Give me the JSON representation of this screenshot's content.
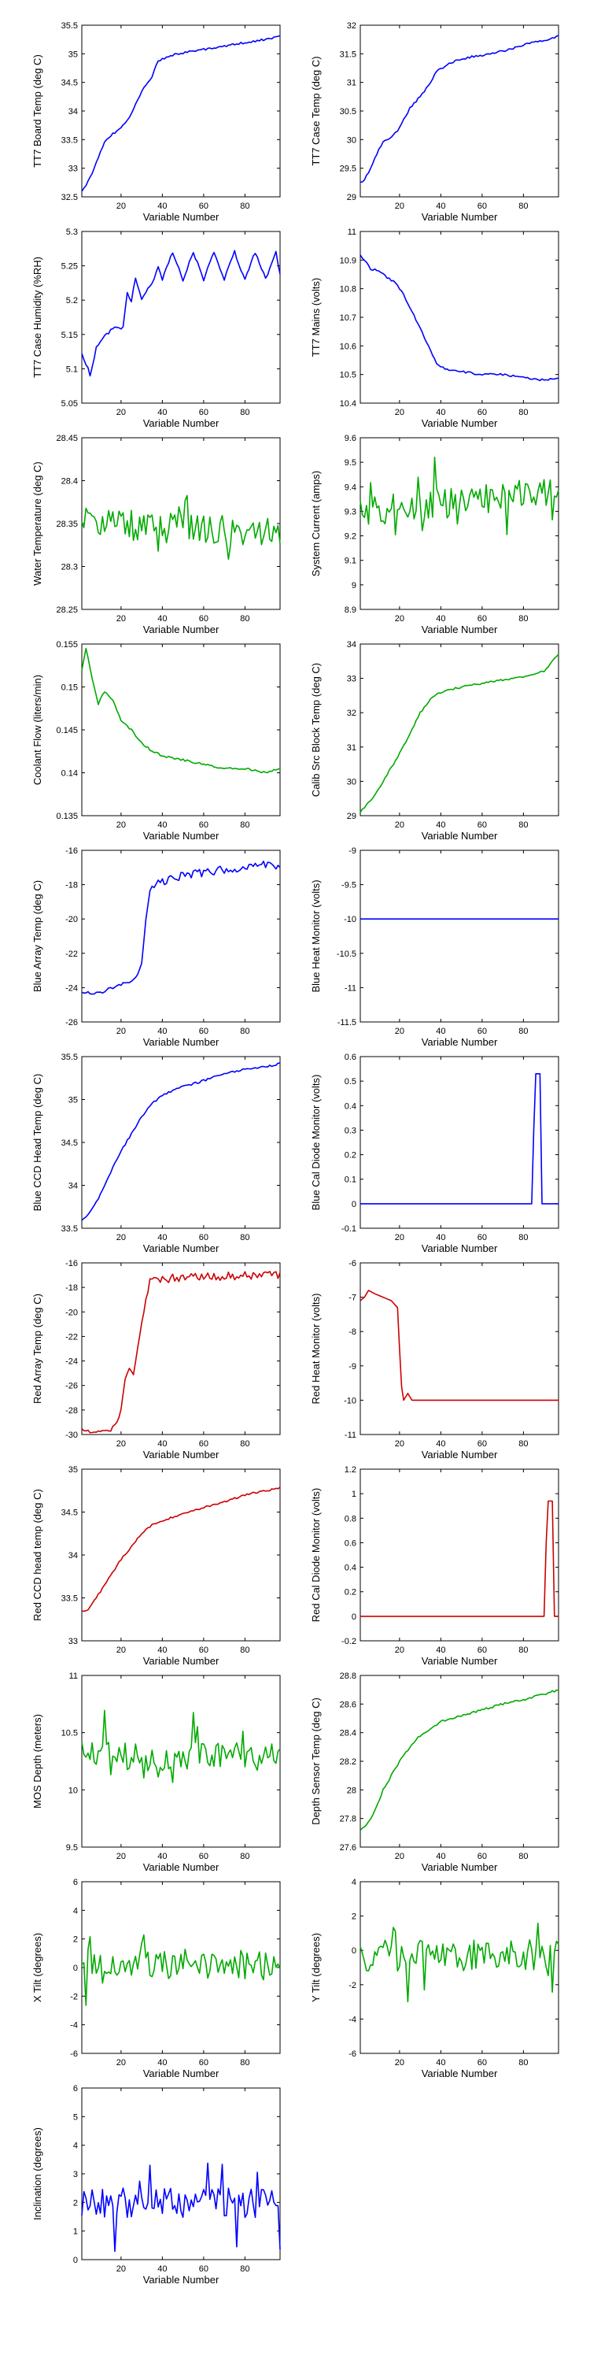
{
  "figure": {
    "background": "#ffffff"
  },
  "chart_data": [
    {
      "type": "line",
      "color": "#0000ff",
      "xlim": [
        1,
        97
      ],
      "ylim": [
        32.5,
        35.5
      ],
      "xticks": [
        20,
        40,
        60,
        80
      ],
      "yticks": [
        32.5,
        33,
        33.5,
        34,
        34.5,
        35,
        35.5
      ],
      "xlabel": "Variable Number",
      "ylabel": "TT7 Board Temp (deg C)",
      "trend": "rising",
      "x": [
        1,
        3,
        6,
        9,
        12,
        16,
        20,
        25,
        30,
        35,
        38,
        45,
        55,
        65,
        75,
        85,
        97
      ],
      "y": [
        32.6,
        32.7,
        32.9,
        33.2,
        33.45,
        33.6,
        33.7,
        33.95,
        34.35,
        34.6,
        34.88,
        34.98,
        35.05,
        35.1,
        35.17,
        35.22,
        35.3
      ]
    },
    {
      "type": "line",
      "color": "#0000ff",
      "xlim": [
        1,
        97
      ],
      "ylim": [
        29,
        32
      ],
      "xticks": [
        20,
        40,
        60,
        80
      ],
      "yticks": [
        29,
        29.5,
        30,
        30.5,
        31,
        31.5,
        32
      ],
      "xlabel": "Variable Number",
      "ylabel": "TT7 Case Temp (deg C)",
      "trend": "rising",
      "x": [
        1,
        3,
        6,
        9,
        12,
        16,
        20,
        25,
        30,
        35,
        38,
        45,
        55,
        65,
        75,
        85,
        97
      ],
      "y": [
        29.25,
        29.3,
        29.5,
        29.75,
        29.95,
        30.05,
        30.2,
        30.55,
        30.75,
        31.0,
        31.2,
        31.35,
        31.45,
        31.5,
        31.6,
        31.7,
        31.8
      ]
    },
    {
      "type": "line",
      "color": "#0000ff",
      "xlim": [
        1,
        97
      ],
      "ylim": [
        5.05,
        5.3
      ],
      "xticks": [
        20,
        40,
        60,
        80
      ],
      "yticks": [
        5.05,
        5.1,
        5.15,
        5.2,
        5.25,
        5.3
      ],
      "xlabel": "Variable Number",
      "ylabel": "TT7 Case Humidity (%RH)",
      "trend": "steps",
      "x": [
        1,
        4,
        5,
        8,
        10,
        13,
        17,
        21,
        23,
        25,
        27,
        30,
        34,
        36,
        38,
        40,
        45,
        50,
        55,
        60,
        65,
        70,
        75,
        80,
        85,
        90,
        95,
        97
      ],
      "y": [
        5.12,
        5.1,
        5.09,
        5.13,
        5.14,
        5.15,
        5.16,
        5.16,
        5.21,
        5.2,
        5.23,
        5.2,
        5.22,
        5.23,
        5.25,
        5.23,
        5.27,
        5.23,
        5.27,
        5.23,
        5.27,
        5.23,
        5.27,
        5.23,
        5.27,
        5.23,
        5.27,
        5.24
      ]
    },
    {
      "type": "line",
      "color": "#0000ff",
      "xlim": [
        1,
        97
      ],
      "ylim": [
        10.4,
        11.0
      ],
      "xticks": [
        20,
        40,
        60,
        80
      ],
      "yticks": [
        10.4,
        10.5,
        10.6,
        10.7,
        10.8,
        10.9,
        11
      ],
      "xlabel": "Variable Number",
      "ylabel": "TT7 Mains (volts)",
      "trend": "falling",
      "x": [
        1,
        3,
        6,
        10,
        14,
        18,
        22,
        26,
        30,
        34,
        38,
        42,
        50,
        60,
        70,
        80,
        90,
        97
      ],
      "y": [
        10.92,
        10.9,
        10.87,
        10.86,
        10.84,
        10.82,
        10.78,
        10.72,
        10.66,
        10.6,
        10.54,
        10.52,
        10.51,
        10.5,
        10.5,
        10.49,
        10.48,
        10.49
      ]
    },
    {
      "type": "line",
      "color": "#00aa00",
      "xlim": [
        1,
        97
      ],
      "ylim": [
        28.25,
        28.45
      ],
      "xticks": [
        20,
        40,
        60,
        80
      ],
      "yticks": [
        28.25,
        28.3,
        28.35,
        28.4,
        28.45
      ],
      "xlabel": "Variable Number",
      "ylabel": "Water Temperature (deg C)",
      "trend": "flat",
      "x": [
        1,
        97
      ],
      "y": [
        28.35,
        28.34
      ]
    },
    {
      "type": "line",
      "color": "#00aa00",
      "xlim": [
        1,
        97
      ],
      "ylim": [
        8.9,
        9.6
      ],
      "xticks": [
        20,
        40,
        60,
        80
      ],
      "yticks": [
        8.9,
        9,
        9.1,
        9.2,
        9.3,
        9.4,
        9.5,
        9.6
      ],
      "xlabel": "Variable Number",
      "ylabel": "System Current (amps)",
      "trend": "flat",
      "x": [
        1,
        97
      ],
      "y": [
        9.3,
        9.38
      ]
    },
    {
      "type": "line",
      "color": "#00aa00",
      "xlim": [
        1,
        97
      ],
      "ylim": [
        0.135,
        0.155
      ],
      "xticks": [
        20,
        40,
        60,
        80
      ],
      "yticks": [
        0.135,
        0.14,
        0.145,
        0.15,
        0.155
      ],
      "xlabel": "Variable Number",
      "ylabel": "Coolant Flow (liters/min)",
      "trend": "falling",
      "x": [
        1,
        3,
        6,
        9,
        12,
        16,
        20,
        25,
        30,
        35,
        40,
        50,
        60,
        70,
        80,
        90,
        97
      ],
      "y": [
        0.152,
        0.1545,
        0.151,
        0.148,
        0.1495,
        0.1485,
        0.146,
        0.145,
        0.1435,
        0.1425,
        0.142,
        0.1415,
        0.141,
        0.1405,
        0.1405,
        0.14,
        0.1405
      ]
    },
    {
      "type": "line",
      "color": "#00aa00",
      "xlim": [
        1,
        97
      ],
      "ylim": [
        29,
        34
      ],
      "xticks": [
        20,
        40,
        60,
        80
      ],
      "yticks": [
        29,
        30,
        31,
        32,
        33,
        34
      ],
      "xlabel": "Variable Number",
      "ylabel": "Calib Src Block Temp (deg C)",
      "trend": "rising",
      "x": [
        1,
        4,
        8,
        12,
        16,
        20,
        25,
        30,
        35,
        40,
        50,
        60,
        70,
        80,
        90,
        94,
        97
      ],
      "y": [
        29.1,
        29.3,
        29.6,
        30.0,
        30.4,
        30.8,
        31.4,
        32.0,
        32.4,
        32.6,
        32.75,
        32.85,
        32.95,
        33.05,
        33.2,
        33.5,
        33.7
      ]
    },
    {
      "type": "line",
      "color": "#0000ff",
      "xlim": [
        1,
        97
      ],
      "ylim": [
        -26,
        -16
      ],
      "xticks": [
        20,
        40,
        60,
        80
      ],
      "yticks": [
        -26,
        -24,
        -22,
        -20,
        -18,
        -16
      ],
      "xlabel": "Variable Number",
      "ylabel": "Blue Array Temp (deg C)",
      "trend": "jump",
      "x": [
        1,
        10,
        20,
        25,
        28,
        30,
        32,
        34,
        36,
        40,
        50,
        60,
        70,
        80,
        90,
        97
      ],
      "y": [
        -24.3,
        -24.3,
        -23.8,
        -23.6,
        -23.2,
        -22.5,
        -20,
        -18.3,
        -18,
        -17.8,
        -17.5,
        -17.3,
        -17.1,
        -17.0,
        -16.8,
        -17.0
      ]
    },
    {
      "type": "line",
      "color": "#0000ff",
      "xlim": [
        1,
        97
      ],
      "ylim": [
        -11.5,
        -9
      ],
      "xticks": [
        20,
        40,
        60,
        80
      ],
      "yticks": [
        -11.5,
        -11,
        -10.5,
        -10,
        -9.5,
        -9
      ],
      "xlabel": "Variable Number",
      "ylabel": "Blue Heat Monitor (volts)",
      "trend": "none",
      "x": [
        1,
        97
      ],
      "y": [
        -10,
        -10
      ]
    },
    {
      "type": "line",
      "color": "#0000ff",
      "xlim": [
        1,
        97
      ],
      "ylim": [
        33.5,
        35.5
      ],
      "xticks": [
        20,
        40,
        60,
        80
      ],
      "yticks": [
        33.5,
        34,
        34.5,
        35,
        35.5
      ],
      "xlabel": "Variable Number",
      "ylabel": "Blue CCD Head Temp (deg C)",
      "trend": "rising",
      "x": [
        1,
        4,
        8,
        12,
        16,
        20,
        25,
        30,
        35,
        40,
        50,
        60,
        70,
        80,
        90,
        97
      ],
      "y": [
        33.6,
        33.65,
        33.8,
        34.0,
        34.2,
        34.4,
        34.6,
        34.8,
        34.95,
        35.05,
        35.15,
        35.22,
        35.3,
        35.35,
        35.38,
        35.42
      ]
    },
    {
      "type": "line",
      "color": "#0000ff",
      "xlim": [
        1,
        97
      ],
      "ylim": [
        -0.1,
        0.6
      ],
      "xticks": [
        20,
        40,
        60,
        80
      ],
      "yticks": [
        -0.1,
        0,
        0.1,
        0.2,
        0.3,
        0.4,
        0.5,
        0.6
      ],
      "xlabel": "Variable Number",
      "ylabel": "Blue Cal Diode Monitor (volts)",
      "trend": "none",
      "x": [
        1,
        84,
        85,
        86,
        87,
        88,
        89,
        97
      ],
      "y": [
        0,
        0,
        0.3,
        0.53,
        0.53,
        0.53,
        0,
        0
      ]
    },
    {
      "type": "line",
      "color": "#cc0000",
      "xlim": [
        1,
        97
      ],
      "ylim": [
        -30,
        -16
      ],
      "xticks": [
        20,
        40,
        60,
        80
      ],
      "yticks": [
        -30,
        -28,
        -26,
        -24,
        -22,
        -20,
        -18,
        -16
      ],
      "xlabel": "Variable Number",
      "ylabel": "Red Array Temp (deg C)",
      "trend": "jump",
      "x": [
        1,
        5,
        10,
        15,
        18,
        20,
        22,
        24,
        26,
        28,
        30,
        32,
        34,
        36,
        40,
        50,
        60,
        70,
        80,
        90,
        97
      ],
      "y": [
        -29.6,
        -29.8,
        -29.7,
        -29.6,
        -29.0,
        -28.0,
        -25.5,
        -24.5,
        -25.0,
        -23.0,
        -21.0,
        -19.0,
        -17.6,
        -17.4,
        -17.3,
        -17.2,
        -17.1,
        -17.1,
        -17.0,
        -17.0,
        -17.0
      ]
    },
    {
      "type": "line",
      "color": "#cc0000",
      "xlim": [
        1,
        97
      ],
      "ylim": [
        -11,
        -6
      ],
      "xticks": [
        20,
        40,
        60,
        80
      ],
      "yticks": [
        -11,
        -10,
        -9,
        -8,
        -7,
        -6
      ],
      "xlabel": "Variable Number",
      "ylabel": "Red Heat Monitor (volts)",
      "trend": "none",
      "x": [
        1,
        3,
        5,
        8,
        12,
        16,
        19,
        20,
        21,
        22,
        24,
        26,
        30,
        40,
        60,
        80,
        97
      ],
      "y": [
        -7.1,
        -7.0,
        -6.8,
        -6.9,
        -7.0,
        -7.1,
        -7.3,
        -8.5,
        -9.6,
        -10.0,
        -9.8,
        -10.0,
        -10.0,
        -10.0,
        -10.0,
        -10.0,
        -10.0
      ]
    },
    {
      "type": "line",
      "color": "#cc0000",
      "xlim": [
        1,
        97
      ],
      "ylim": [
        33,
        35
      ],
      "xticks": [
        20,
        40,
        60,
        80
      ],
      "yticks": [
        33,
        33.5,
        34,
        34.5,
        35
      ],
      "xlabel": "Variable Number",
      "ylabel": "Red CCD head temp (deg C)",
      "trend": "rising",
      "x": [
        1,
        4,
        8,
        12,
        16,
        20,
        25,
        30,
        35,
        40,
        50,
        60,
        70,
        80,
        90,
        97
      ],
      "y": [
        33.35,
        33.35,
        33.5,
        33.65,
        33.8,
        33.95,
        34.1,
        34.25,
        34.35,
        34.4,
        34.48,
        34.55,
        34.62,
        34.7,
        34.75,
        34.78
      ]
    },
    {
      "type": "line",
      "color": "#cc0000",
      "xlim": [
        1,
        97
      ],
      "ylim": [
        -0.2,
        1.2
      ],
      "xticks": [
        20,
        40,
        60,
        80
      ],
      "yticks": [
        -0.2,
        0,
        0.2,
        0.4,
        0.6,
        0.8,
        1,
        1.2
      ],
      "xlabel": "Variable Number",
      "ylabel": "Red Cal Diode Monitor (volts)",
      "trend": "none",
      "x": [
        1,
        90,
        91,
        92,
        93,
        94,
        95,
        97
      ],
      "y": [
        0,
        0,
        0.6,
        0.94,
        0.94,
        0.94,
        0,
        0
      ]
    },
    {
      "type": "line",
      "color": "#00aa00",
      "xlim": [
        1,
        97
      ],
      "ylim": [
        9.5,
        11
      ],
      "xticks": [
        20,
        40,
        60,
        80
      ],
      "yticks": [
        9.5,
        10,
        10.5,
        11
      ],
      "xlabel": "Variable Number",
      "ylabel": "MOS Depth  (meters)",
      "trend": "flat",
      "x": [
        1,
        97
      ],
      "y": [
        10.3,
        10.3
      ]
    },
    {
      "type": "line",
      "color": "#00aa00",
      "xlim": [
        1,
        97
      ],
      "ylim": [
        27.6,
        28.8
      ],
      "xticks": [
        20,
        40,
        60,
        80
      ],
      "yticks": [
        27.6,
        27.8,
        28,
        28.2,
        28.4,
        28.6,
        28.8
      ],
      "xlabel": "Variable Number",
      "ylabel": "Depth Sensor Temp (deg C)",
      "trend": "rising",
      "x": [
        1,
        4,
        8,
        12,
        16,
        20,
        25,
        30,
        35,
        40,
        50,
        60,
        70,
        80,
        90,
        97
      ],
      "y": [
        27.72,
        27.75,
        27.85,
        28.0,
        28.1,
        28.2,
        28.3,
        28.38,
        28.42,
        28.48,
        28.52,
        28.56,
        28.6,
        28.63,
        28.67,
        28.7
      ]
    },
    {
      "type": "line",
      "color": "#00aa00",
      "xlim": [
        1,
        97
      ],
      "ylim": [
        -6,
        6
      ],
      "xticks": [
        20,
        40,
        60,
        80
      ],
      "yticks": [
        -6,
        -4,
        -2,
        0,
        2,
        4,
        6
      ],
      "xlabel": "Variable Number",
      "ylabel": "X Tilt  (degrees)",
      "trend": "flat",
      "x": [
        1,
        97
      ],
      "y": [
        0.2,
        0.2
      ]
    },
    {
      "type": "line",
      "color": "#00aa00",
      "xlim": [
        1,
        97
      ],
      "ylim": [
        -6,
        4
      ],
      "xticks": [
        20,
        40,
        60,
        80
      ],
      "yticks": [
        -6,
        -4,
        -2,
        0,
        2,
        4
      ],
      "xlabel": "Variable Number",
      "ylabel": "Y Tilt  (degrees)",
      "trend": "flat",
      "x": [
        1,
        97
      ],
      "y": [
        -0.3,
        -0.3
      ]
    },
    {
      "type": "line",
      "color": "#0000ff",
      "xlim": [
        1,
        97
      ],
      "ylim": [
        0,
        6
      ],
      "xticks": [
        20,
        40,
        60,
        80
      ],
      "yticks": [
        0,
        1,
        2,
        3,
        4,
        5,
        6
      ],
      "xlabel": "Variable Number",
      "ylabel": "Inclination  (degrees)",
      "trend": "flat",
      "x": [
        1,
        97
      ],
      "y": [
        2.0,
        2.0
      ]
    }
  ]
}
